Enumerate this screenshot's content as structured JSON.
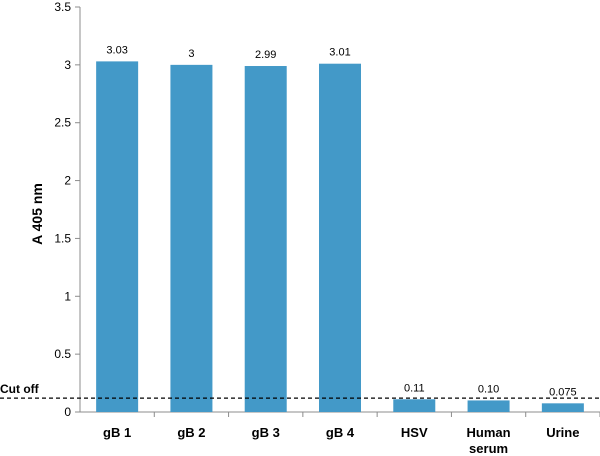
{
  "chart_data": {
    "type": "bar",
    "title": "",
    "xlabel": "",
    "ylabel": "A 405 nm",
    "ylim": [
      0,
      3.5
    ],
    "yticks": [
      "0",
      "0.5",
      "1",
      "1.5",
      "2",
      "2.5",
      "3",
      "3.5"
    ],
    "categories": [
      [
        "gB 1"
      ],
      [
        "gB 2"
      ],
      [
        "gB 3"
      ],
      [
        "gB 4"
      ],
      [
        "HSV"
      ],
      [
        "Human",
        "serum"
      ],
      [
        "Urine"
      ]
    ],
    "values": [
      3.03,
      3.0,
      2.99,
      3.01,
      0.11,
      0.1,
      0.075
    ],
    "data_labels": [
      "3.03",
      "3",
      "2.99",
      "3.01",
      "0.11",
      "0.10",
      "0.075"
    ],
    "bar_color": "#4399c8",
    "grid": false,
    "cutoff": {
      "label": "Cut off",
      "value": 0.12
    }
  }
}
